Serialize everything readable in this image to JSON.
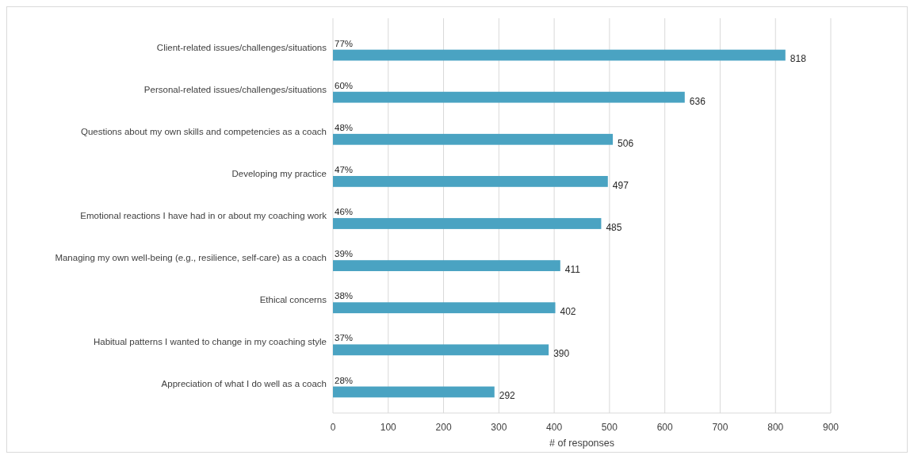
{
  "chart_data": {
    "type": "bar",
    "orientation": "horizontal",
    "xlabel": "# of responses",
    "categories": [
      "Client-related issues/challenges/situations",
      "Personal-related issues/challenges/situations",
      "Questions about my own skills and competencies as a coach",
      "Developing my practice",
      "Emotional reactions I have had in or about my coaching work",
      "Managing my own well-being (e.g., resilience, self-care) as a coach",
      "Ethical concerns",
      "Habitual patterns I wanted to change in my coaching style",
      "Appreciation of what I do well as a coach"
    ],
    "values": [
      818,
      636,
      506,
      497,
      485,
      411,
      402,
      390,
      292
    ],
    "color": "#4aa3c2",
    "xlim": [
      0,
      900
    ],
    "xticks": [
      0,
      100,
      200,
      300,
      400,
      500,
      600,
      700,
      800,
      900
    ],
    "grid": "x",
    "data_labels": true,
    "annotations": [
      {
        "text": "77%",
        "y": "Client-related issues/challenges/situations"
      },
      {
        "text": "60%",
        "y": "Personal-related issues/challenges/situations"
      },
      {
        "text": "48%",
        "y": "Questions about my own skills and competencies as a coach"
      },
      {
        "text": "47%",
        "y": "Developing my practice"
      },
      {
        "text": "46%",
        "y": "Emotional reactions I have had in or about my coaching work"
      },
      {
        "text": "39%",
        "y": "Managing my own well-being (e.g., resilience, self-care) as a coach"
      },
      {
        "text": "38%",
        "y": "Ethical concerns"
      },
      {
        "text": "37%",
        "y": "Habitual patterns I wanted to change in my coaching style"
      },
      {
        "text": "28%",
        "y": "Appreciation of what I do well as a coach"
      }
    ]
  }
}
